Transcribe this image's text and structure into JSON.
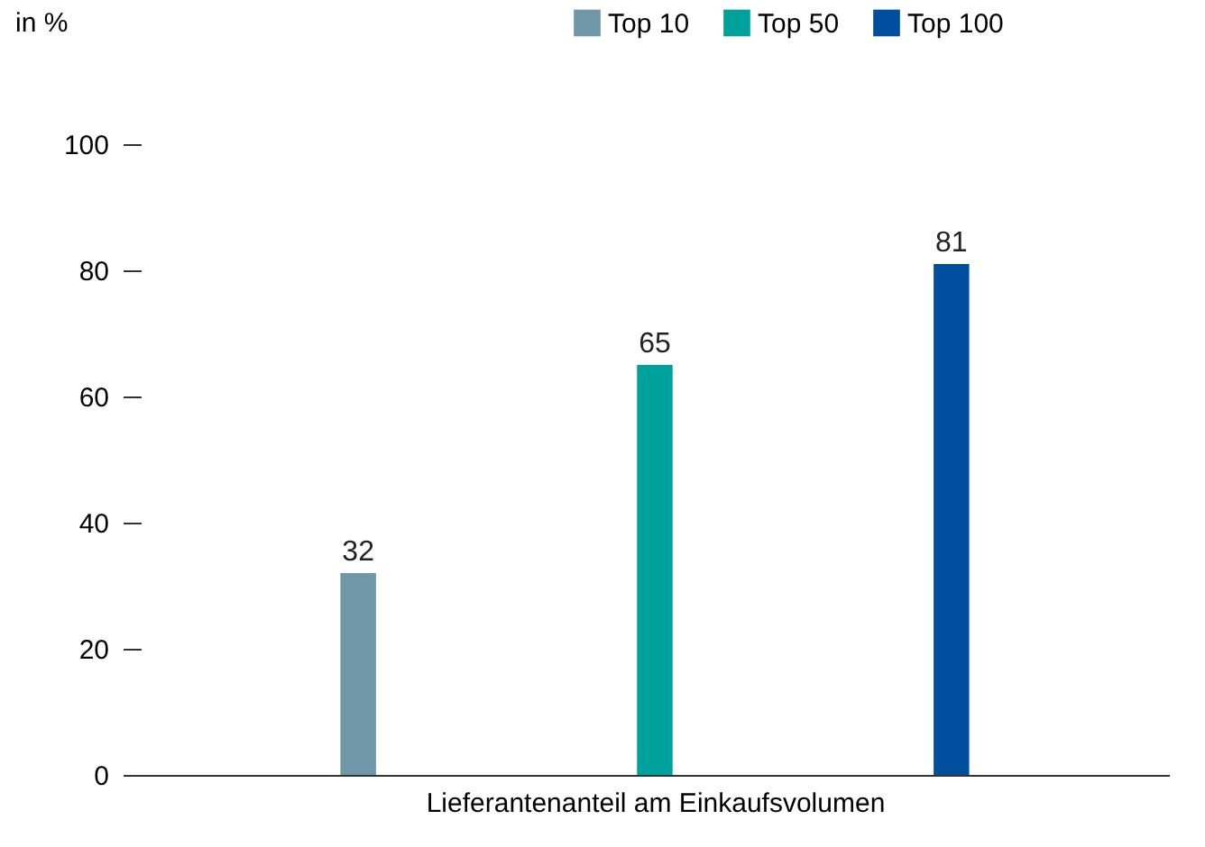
{
  "chart_data": {
    "type": "bar",
    "xlabel": "Lieferantenanteil am Einkaufsvolumen",
    "ylabel": "in %",
    "categories": [
      null
    ],
    "series": [
      {
        "name": "Top 10",
        "color": "#7097a8",
        "values": [
          32
        ]
      },
      {
        "name": "Top 50",
        "color": "#00a09b",
        "values": [
          65
        ]
      },
      {
        "name": "Top 100",
        "color": "#004f9f",
        "values": [
          81
        ]
      }
    ],
    "ylim": [
      0,
      100
    ],
    "yticks": [
      0,
      20,
      40,
      60,
      80,
      100
    ],
    "grid": false,
    "legend": "top right",
    "data_labels": true,
    "tick_labels": "y"
  }
}
